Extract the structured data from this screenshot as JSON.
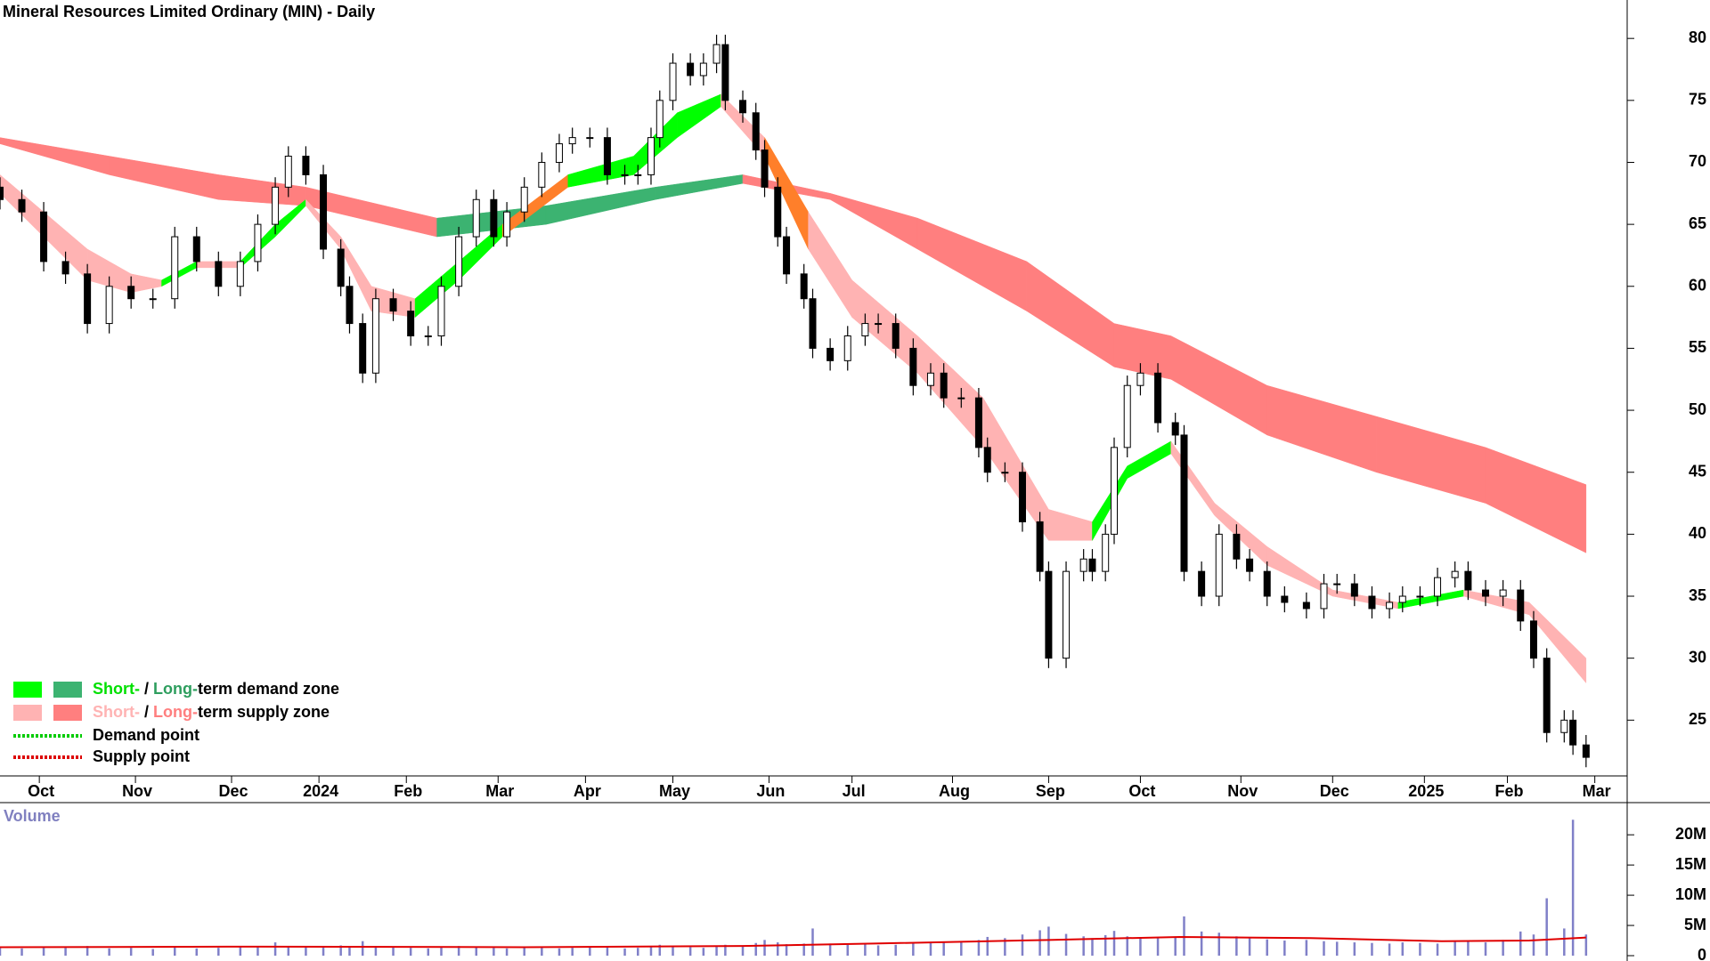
{
  "chart_data": [
    {
      "type": "candlestick",
      "title": "Mineral Resources Limited Ordinary (MIN) - Daily",
      "x": [
        0,
        5,
        10,
        15,
        20,
        25,
        30,
        35,
        40,
        45,
        50,
        55,
        59,
        63,
        66,
        70,
        74,
        78,
        80,
        83,
        86,
        90,
        94,
        98,
        101,
        105,
        109,
        113,
        116,
        120,
        124,
        128,
        131,
        135,
        139,
        143,
        146,
        149,
        151,
        154,
        158,
        161,
        164,
        166,
        170,
        173,
        175,
        178,
        180,
        184,
        186,
        190,
        194,
        198,
        201,
        205,
        209,
        213,
        216,
        220,
        224,
        226,
        230,
        234,
        238,
        240,
        244,
        248,
        250,
        253,
        255,
        258,
        261,
        265,
        269,
        271,
        275,
        279,
        283,
        286,
        290,
        294,
        299,
        303,
        306,
        310,
        314,
        318,
        321,
        325,
        329,
        333,
        336,
        340,
        344,
        348,
        351,
        354,
        358,
        360,
        363
      ],
      "open": [
        68,
        67,
        66,
        62,
        61,
        57,
        60,
        59,
        59,
        64,
        62,
        60,
        62,
        65,
        68,
        70.5,
        69,
        63,
        60,
        57,
        53,
        59,
        58,
        56,
        56,
        60,
        64,
        67,
        64,
        66,
        68,
        70,
        71.5,
        72,
        72,
        69,
        69,
        69,
        72,
        75,
        78,
        77,
        78,
        79.5,
        75,
        74,
        71,
        68,
        64,
        61,
        59,
        55,
        54,
        56,
        57,
        57,
        55,
        52,
        53,
        51,
        51,
        47,
        45,
        45,
        41,
        37,
        30,
        37,
        38,
        37,
        40,
        47,
        52,
        53,
        49,
        48,
        37,
        35,
        40,
        38,
        37,
        35,
        34.5,
        34,
        36,
        36,
        35,
        34,
        34.5,
        35,
        35,
        36.5,
        37,
        35.5,
        35,
        35.5,
        33,
        30,
        24,
        25,
        23
      ],
      "high": [
        68.8,
        67.8,
        66.8,
        62.8,
        61.8,
        60.8,
        60.8,
        59.8,
        64.8,
        64.8,
        62.8,
        62.8,
        65.8,
        68.8,
        71.3,
        71.3,
        69.8,
        63.8,
        60.8,
        57.8,
        59.8,
        59.8,
        58.8,
        56.8,
        60.8,
        64.8,
        67.8,
        67.8,
        66.8,
        68.8,
        70.8,
        72.3,
        72.8,
        72.8,
        72.8,
        69.8,
        69.8,
        72.8,
        75.8,
        78.8,
        78.8,
        78.8,
        80.3,
        80.3,
        75.8,
        74.8,
        71.8,
        68.8,
        64.8,
        61.8,
        59.8,
        55.8,
        56.8,
        57.8,
        57.8,
        57.8,
        55.8,
        53.8,
        53.8,
        51.8,
        51.8,
        47.8,
        45.8,
        45.8,
        41.8,
        37.8,
        37.8,
        38.8,
        38.8,
        40.8,
        47.8,
        52.8,
        53.8,
        53.8,
        49.8,
        48.8,
        37.8,
        40.8,
        40.8,
        38.8,
        37.8,
        35.8,
        35.3,
        36.8,
        36.8,
        36.8,
        35.8,
        35.3,
        35.8,
        35.8,
        37.3,
        37.8,
        37.8,
        36.3,
        36.3,
        36.3,
        33.8,
        30.8,
        25.8,
        25.8,
        23.8
      ],
      "low": [
        66.2,
        65.2,
        61.2,
        60.2,
        56.2,
        56.2,
        58.2,
        58.2,
        58.2,
        61.2,
        59.2,
        59.2,
        61.2,
        64.2,
        67.2,
        68.2,
        62.2,
        59.2,
        56.2,
        52.2,
        52.2,
        57.2,
        55.2,
        55.2,
        55.2,
        59.2,
        63.2,
        63.2,
        63.2,
        65.2,
        67.2,
        69.2,
        70.7,
        71.2,
        68.2,
        68.2,
        68.2,
        68.2,
        71.2,
        74.2,
        76.2,
        76.2,
        77.2,
        74.2,
        73.2,
        70.2,
        67.2,
        63.2,
        60.2,
        58.2,
        54.2,
        53.2,
        53.2,
        55.2,
        56.2,
        54.2,
        51.2,
        51.2,
        50.2,
        50.2,
        46.2,
        44.2,
        44.2,
        40.2,
        36.2,
        29.2,
        29.2,
        36.2,
        36.2,
        36.2,
        39.2,
        46.2,
        51.2,
        48.2,
        47.2,
        36.2,
        34.2,
        34.2,
        37.2,
        36.2,
        34.2,
        33.7,
        33.2,
        33.2,
        35.2,
        34.2,
        33.2,
        33.2,
        33.7,
        34.2,
        34.2,
        35.7,
        34.7,
        34.2,
        34.2,
        32.2,
        29.2,
        23.2,
        23.2,
        22.2,
        21.2
      ],
      "close": [
        67,
        66,
        62,
        61,
        57,
        60,
        59,
        59,
        64,
        62,
        60,
        62,
        65,
        68,
        70.5,
        69,
        63,
        60,
        57,
        53,
        59,
        58,
        56,
        56,
        60,
        64,
        67,
        64,
        66,
        68,
        70,
        71.5,
        72,
        72,
        69,
        69,
        69,
        72,
        75,
        78,
        77,
        78,
        79.5,
        75,
        74,
        71,
        68,
        64,
        61,
        59,
        55,
        54,
        56,
        57,
        57,
        55,
        52,
        53,
        51,
        51,
        47,
        45,
        45,
        41,
        37,
        30,
        37,
        38,
        37,
        40,
        47,
        52,
        53,
        49,
        48,
        37,
        35,
        40,
        38,
        37,
        35,
        34.5,
        34,
        36,
        36,
        35,
        34,
        34.5,
        35,
        35,
        36.5,
        37,
        35.5,
        35,
        35.5,
        33,
        30,
        24,
        25,
        23,
        22
      ],
      "up_color": "#ffffff",
      "down_color": "#000000",
      "xlim": [
        0,
        372
      ],
      "ylim": [
        20.5,
        83.1
      ],
      "yticks": [
        25,
        30,
        35,
        40,
        45,
        50,
        55,
        60,
        65,
        70,
        75,
        80
      ],
      "xticks": [
        {
          "value": 9,
          "label": "Oct"
        },
        {
          "value": 31,
          "label": "Nov"
        },
        {
          "value": 53,
          "label": "Dec"
        },
        {
          "value": 73,
          "label": "2024"
        },
        {
          "value": 93,
          "label": "Feb"
        },
        {
          "value": 114,
          "label": "Mar"
        },
        {
          "value": 134,
          "label": "Apr"
        },
        {
          "value": 154,
          "label": "May"
        },
        {
          "value": 176,
          "label": "Jun"
        },
        {
          "value": 195,
          "label": "Jul"
        },
        {
          "value": 218,
          "label": "Aug"
        },
        {
          "value": 240,
          "label": "Sep"
        },
        {
          "value": 261,
          "label": "Oct"
        },
        {
          "value": 284,
          "label": "Nov"
        },
        {
          "value": 305,
          "label": "Dec"
        },
        {
          "value": 326,
          "label": "2025"
        },
        {
          "value": 345,
          "label": "Feb"
        },
        {
          "value": 365,
          "label": "Mar"
        }
      ],
      "long_band": {
        "x": [
          0,
          25,
          50,
          70,
          100,
          125,
          150,
          170,
          190,
          210,
          235,
          255,
          268,
          290,
          315,
          340,
          363
        ],
        "upper": [
          72,
          70.5,
          69,
          68,
          65.5,
          66.5,
          68,
          69,
          67.5,
          65.5,
          62,
          57,
          56,
          52,
          49.5,
          47,
          44
        ],
        "lower": [
          71.5,
          69,
          67,
          66.5,
          64,
          65,
          67,
          68.3,
          67,
          63,
          58,
          53.5,
          52.5,
          48,
          45,
          42.5,
          38.5
        ],
        "rise_color": "#3cb371",
        "fall_color": "#ff7f7f"
      },
      "short_band": {
        "x": [
          0,
          10,
          20,
          30,
          37,
          45,
          55,
          63,
          70,
          78,
          85,
          95,
          105,
          115,
          130,
          145,
          155,
          165,
          175,
          185,
          195,
          210,
          225,
          240,
          250,
          258,
          268,
          278,
          290,
          305,
          320,
          335,
          350,
          363
        ],
        "upper": [
          69,
          66,
          63,
          61,
          60.5,
          62,
          62,
          65,
          67,
          64,
          60,
          59,
          62,
          65,
          69,
          70.5,
          74,
          75.5,
          72,
          66,
          60.5,
          56,
          51,
          42,
          41,
          45.5,
          47.5,
          42.5,
          39,
          35.5,
          34.5,
          35.5,
          34.5,
          30
        ],
        "lower": [
          67.5,
          64,
          60.5,
          59.5,
          60,
          61.5,
          61.5,
          64,
          66.5,
          63,
          58,
          57.5,
          60.5,
          64,
          68,
          69,
          72,
          74.5,
          70.5,
          63,
          57.5,
          53,
          47,
          39.5,
          39.5,
          44.5,
          46.5,
          41.5,
          37.5,
          35,
          34,
          35,
          33.5,
          28
        ],
        "rise_color": "#00ff00",
        "fall_color": "#ffb3b3",
        "overlap_color": "#ff7f2a"
      },
      "legend_corner": "bottom-left",
      "legend": [
        {
          "swatches": [
            "#00ff00",
            "#3cb371"
          ],
          "parts": [
            {
              "text": "Short-",
              "color": "#00e000"
            },
            {
              "text": " / ",
              "color": "#000000"
            },
            {
              "text": "Long-",
              "color": "#2e9e5e"
            },
            {
              "text": "term demand zone",
              "color": "#000000"
            }
          ]
        },
        {
          "swatches": [
            "#ffb3b3",
            "#ff7f7f"
          ],
          "parts": [
            {
              "text": "Short-",
              "color": "#ffb3b3"
            },
            {
              "text": " / ",
              "color": "#000000"
            },
            {
              "text": "Long-",
              "color": "#ff7f7f"
            },
            {
              "text": "term supply zone",
              "color": "#000000"
            }
          ]
        },
        {
          "line_color": "#00cc00",
          "parts": [
            {
              "text": "Demand point",
              "color": "#000000"
            }
          ]
        },
        {
          "line_color": "#dd0000",
          "parts": [
            {
              "text": "Supply point",
              "color": "#000000"
            }
          ]
        }
      ]
    },
    {
      "type": "volume",
      "title": "Volume",
      "values": [
        1.5,
        1.2,
        1.4,
        1.3,
        1.6,
        1.2,
        1.3,
        1.1,
        1.5,
        1.2,
        1.3,
        1.4,
        1.6,
        2.2,
        1.5,
        1.4,
        1.6,
        1.7,
        1.5,
        2.4,
        1.6,
        1.4,
        1.3,
        1.2,
        1.5,
        1.6,
        1.4,
        1.3,
        1.2,
        1.3,
        1.4,
        1.2,
        1.3,
        1.5,
        1.4,
        1.2,
        1.3,
        1.6,
        1.8,
        1.5,
        1.4,
        1.3,
        1.6,
        1.8,
        1.7,
        2.1,
        2.6,
        2.2,
        1.9,
        2.0,
        4.5,
        2.0,
        1.8,
        1.9,
        1.7,
        1.8,
        2.0,
        2.1,
        2.2,
        2.3,
        2.6,
        3.1,
        2.9,
        3.5,
        4.2,
        4.8,
        3.6,
        3.2,
        2.9,
        3.4,
        4.1,
        3.2,
        2.8,
        3.0,
        3.1,
        6.5,
        4.0,
        3.8,
        3.2,
        2.9,
        2.7,
        2.5,
        2.6,
        2.4,
        2.3,
        2.2,
        2.1,
        2.0,
        2.2,
        2.1,
        2.0,
        2.3,
        2.4,
        2.2,
        2.6,
        4.0,
        3.5,
        9.5,
        4.5,
        22.5,
        3.5
      ],
      "color": "#8080c8",
      "average": {
        "x": [
          0,
          60,
          120,
          170,
          200,
          240,
          270,
          300,
          330,
          350,
          363
        ],
        "values": [
          1.4,
          1.5,
          1.4,
          1.6,
          2.0,
          2.6,
          3.1,
          2.9,
          2.4,
          2.5,
          3.0
        ],
        "color": "#e00000"
      },
      "ylim": [
        0,
        24
      ],
      "yticks": [
        0,
        {
          "value": 5,
          "label": "5M"
        },
        {
          "value": 10,
          "label": "10M"
        },
        {
          "value": 15,
          "label": "15M"
        },
        {
          "value": 20,
          "label": "20M"
        }
      ]
    }
  ]
}
